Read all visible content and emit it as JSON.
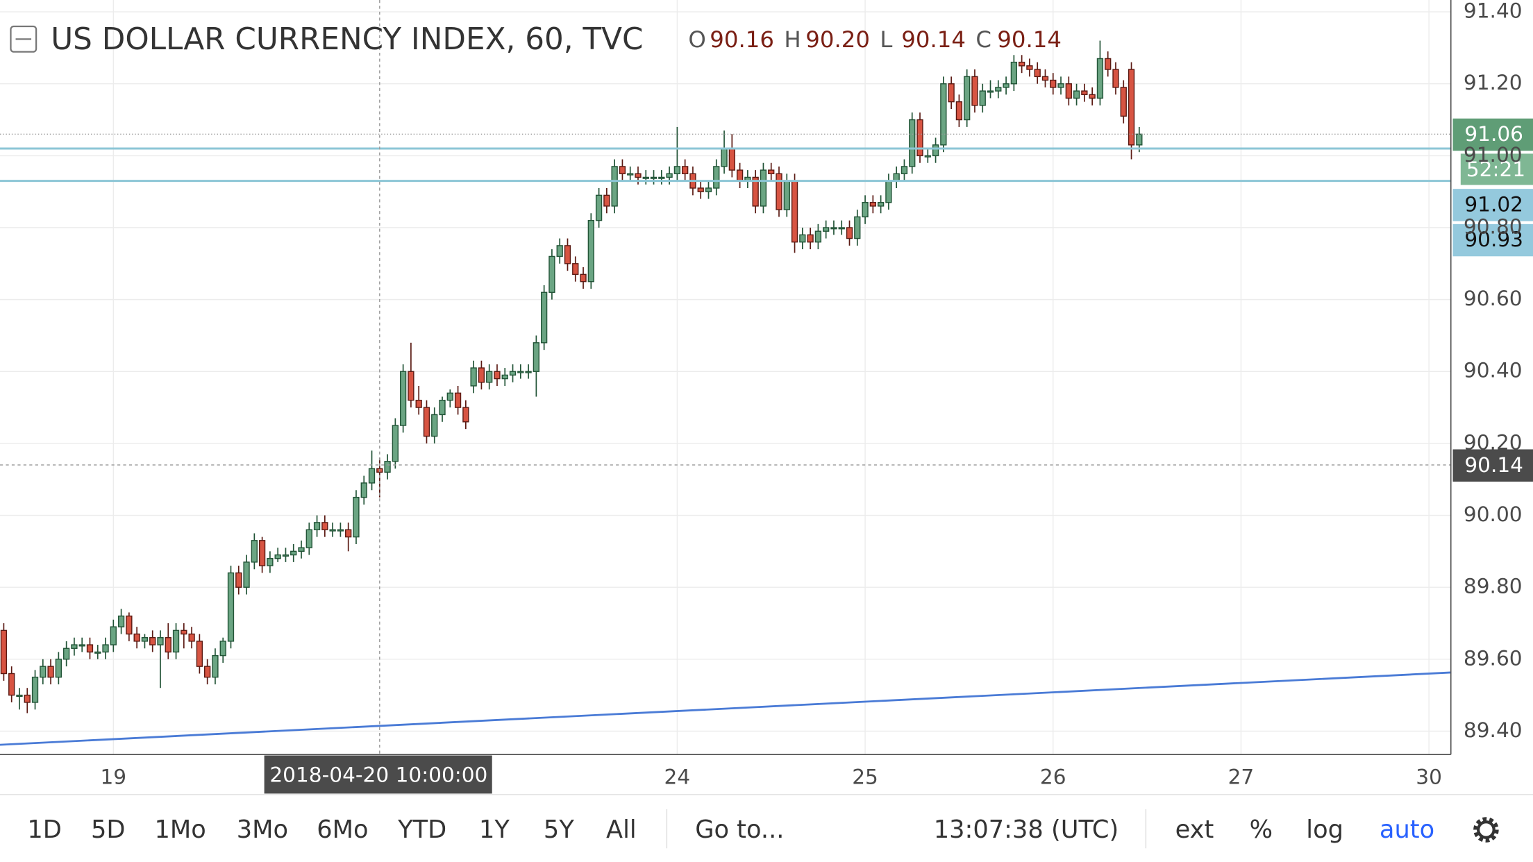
{
  "chart_data": {
    "type": "candlestick",
    "title": "US DOLLAR CURRENCY INDEX, 60, TVC",
    "header": [
      {
        "label": "O",
        "value": 90.16
      },
      {
        "label": "H",
        "value": 90.2,
        "value_label": "90.20"
      },
      {
        "label": "L",
        "value": 90.14
      },
      {
        "label": "C",
        "value": 90.14
      }
    ],
    "up_color": "#6ba583",
    "up_border": "#225437",
    "down_color": "#d75442",
    "down_border": "#5b1a13",
    "x": [
      -14,
      -13,
      -12,
      -11,
      -10,
      -9,
      -8,
      -7,
      -6,
      -5,
      -4,
      -3,
      -2,
      -1,
      0,
      1,
      2,
      3,
      4,
      5,
      6,
      7,
      8,
      9,
      10,
      11,
      12,
      13,
      14,
      15,
      16,
      17,
      18,
      19,
      20,
      21,
      22,
      23,
      24,
      25,
      26,
      27,
      28,
      29,
      30,
      31,
      32,
      33,
      34,
      35,
      36,
      37,
      38,
      39,
      40,
      41,
      42,
      43,
      44,
      45,
      46,
      47,
      48,
      49,
      50,
      51,
      52,
      53,
      54,
      55,
      56,
      57,
      58,
      59,
      60,
      61,
      62,
      63,
      64,
      65,
      66,
      67,
      68,
      69,
      70,
      71,
      72,
      73,
      74,
      75,
      76,
      77,
      78,
      79,
      80,
      81,
      82,
      83,
      84,
      85,
      86,
      87,
      88,
      89,
      90,
      91,
      92,
      93,
      94,
      95,
      96,
      97,
      98,
      99,
      100,
      101,
      102,
      103,
      104,
      105,
      106,
      107,
      108,
      109,
      110,
      111,
      112,
      113,
      114,
      115,
      116,
      117,
      118,
      119,
      120,
      121,
      122,
      123,
      124,
      125,
      126,
      127,
      128,
      129,
      130,
      131
    ],
    "open": [
      89.68,
      89.56,
      89.5,
      89.5,
      89.48,
      89.55,
      89.58,
      89.55,
      89.6,
      89.63,
      89.64,
      89.64,
      89.62,
      89.62,
      89.64,
      89.69,
      89.72,
      89.67,
      89.65,
      89.66,
      89.64,
      89.66,
      89.62,
      89.68,
      89.67,
      89.65,
      89.58,
      89.55,
      89.61,
      89.65,
      89.84,
      89.8,
      89.87,
      89.93,
      89.86,
      89.88,
      89.89,
      89.89,
      89.9,
      89.91,
      89.96,
      89.98,
      89.96,
      89.96,
      89.96,
      89.94,
      90.05,
      90.09,
      90.13,
      90.12,
      90.15,
      90.25,
      90.4,
      90.32,
      90.3,
      90.22,
      90.28,
      90.32,
      90.34,
      90.3,
      90.36,
      90.41,
      90.37,
      90.4,
      90.38,
      90.39,
      90.4,
      90.4,
      90.4,
      90.48,
      90.62,
      90.72,
      90.75,
      90.7,
      90.67,
      90.65,
      90.82,
      90.89,
      90.86,
      90.97,
      90.95,
      90.95,
      90.94,
      90.94,
      90.94,
      90.94,
      90.95,
      90.97,
      90.95,
      90.91,
      90.9,
      90.91,
      90.97,
      91.02,
      90.96,
      90.93,
      90.94,
      90.86,
      90.96,
      90.95,
      90.85,
      90.93,
      90.76,
      90.78,
      90.76,
      90.79,
      90.8,
      90.8,
      90.8,
      90.77,
      90.83,
      90.87,
      90.86,
      90.87,
      90.93,
      90.95,
      90.97,
      91.1,
      91.0,
      91.0,
      91.03,
      91.2,
      91.15,
      91.1,
      91.22,
      91.14,
      91.18,
      91.18,
      91.19,
      91.2,
      91.26,
      91.25,
      91.24,
      91.22,
      91.21,
      91.19,
      91.2,
      91.16,
      91.18,
      91.17,
      91.16,
      91.27,
      91.24,
      91.19,
      91.24,
      91.03
    ],
    "high": [
      89.7,
      89.58,
      89.52,
      89.52,
      89.57,
      89.6,
      89.6,
      89.62,
      89.65,
      89.66,
      89.66,
      89.66,
      89.64,
      89.66,
      89.71,
      89.74,
      89.73,
      89.69,
      89.67,
      89.68,
      89.68,
      89.7,
      89.7,
      89.7,
      89.69,
      89.67,
      89.6,
      89.63,
      89.66,
      89.86,
      89.86,
      89.89,
      89.95,
      89.94,
      89.9,
      89.91,
      89.91,
      89.92,
      89.93,
      89.98,
      90.0,
      90.0,
      89.98,
      89.98,
      89.98,
      90.07,
      90.11,
      90.18,
      90.16,
      90.17,
      90.27,
      90.42,
      90.48,
      90.36,
      90.32,
      90.3,
      90.33,
      90.35,
      90.36,
      90.32,
      90.43,
      90.43,
      90.42,
      90.42,
      90.41,
      90.42,
      90.42,
      90.42,
      90.5,
      90.64,
      90.74,
      90.77,
      90.77,
      90.72,
      90.69,
      90.84,
      90.91,
      90.91,
      90.99,
      90.99,
      90.97,
      90.97,
      90.96,
      90.96,
      90.96,
      90.97,
      91.08,
      90.99,
      90.97,
      90.93,
      90.93,
      90.99,
      91.07,
      91.06,
      90.98,
      90.96,
      90.96,
      90.98,
      90.98,
      90.97,
      90.95,
      90.95,
      90.8,
      90.8,
      90.81,
      90.82,
      90.82,
      90.82,
      90.82,
      90.85,
      90.89,
      90.89,
      90.89,
      90.95,
      90.97,
      90.99,
      91.12,
      91.12,
      91.02,
      91.05,
      91.22,
      91.22,
      91.17,
      91.24,
      91.24,
      91.2,
      91.21,
      91.21,
      91.22,
      91.28,
      91.28,
      91.27,
      91.26,
      91.24,
      91.23,
      91.22,
      91.22,
      91.2,
      91.2,
      91.19,
      91.32,
      91.29,
      91.26,
      91.21,
      91.26,
      91.08
    ],
    "low": [
      89.54,
      89.48,
      89.46,
      89.45,
      89.46,
      89.53,
      89.53,
      89.53,
      89.58,
      89.61,
      89.62,
      89.6,
      89.6,
      89.6,
      89.62,
      89.67,
      89.65,
      89.63,
      89.63,
      89.62,
      89.52,
      89.6,
      89.6,
      89.63,
      89.63,
      89.56,
      89.53,
      89.53,
      89.59,
      89.63,
      89.78,
      89.78,
      89.85,
      89.84,
      89.84,
      89.87,
      89.87,
      89.87,
      89.88,
      89.89,
      89.94,
      89.94,
      89.94,
      89.94,
      89.9,
      89.92,
      90.03,
      90.07,
      90.05,
      90.1,
      90.13,
      90.23,
      90.3,
      90.28,
      90.2,
      90.2,
      90.26,
      90.3,
      90.28,
      90.24,
      90.34,
      90.35,
      90.35,
      90.36,
      90.36,
      90.37,
      90.38,
      90.38,
      90.33,
      90.46,
      90.6,
      90.7,
      90.68,
      90.65,
      90.63,
      90.63,
      90.8,
      90.84,
      90.84,
      90.93,
      90.93,
      90.92,
      90.92,
      90.92,
      90.92,
      90.92,
      90.93,
      90.93,
      90.89,
      90.88,
      90.88,
      90.89,
      90.95,
      90.94,
      90.91,
      90.91,
      90.84,
      90.84,
      90.93,
      90.83,
      90.83,
      90.73,
      90.74,
      90.74,
      90.74,
      90.77,
      90.78,
      90.78,
      90.75,
      90.75,
      90.81,
      90.84,
      90.84,
      90.85,
      90.91,
      90.93,
      90.95,
      90.98,
      90.98,
      90.98,
      91.01,
      91.13,
      91.08,
      91.08,
      91.12,
      91.12,
      91.16,
      91.16,
      91.17,
      91.18,
      91.23,
      91.22,
      91.2,
      91.19,
      91.17,
      91.17,
      91.14,
      91.14,
      91.15,
      91.14,
      91.14,
      91.22,
      91.17,
      91.09,
      90.99,
      91.01
    ],
    "close": [
      89.56,
      89.5,
      89.5,
      89.48,
      89.55,
      89.58,
      89.55,
      89.6,
      89.63,
      89.64,
      89.64,
      89.62,
      89.62,
      89.64,
      89.69,
      89.72,
      89.67,
      89.65,
      89.66,
      89.64,
      89.66,
      89.62,
      89.68,
      89.67,
      89.65,
      89.58,
      89.55,
      89.61,
      89.65,
      89.84,
      89.8,
      89.87,
      89.93,
      89.86,
      89.88,
      89.89,
      89.89,
      89.9,
      89.91,
      89.96,
      89.98,
      89.96,
      89.96,
      89.96,
      89.94,
      90.05,
      90.09,
      90.13,
      90.12,
      90.15,
      90.25,
      90.4,
      90.32,
      90.3,
      90.22,
      90.28,
      90.32,
      90.34,
      90.3,
      90.26,
      90.41,
      90.37,
      90.4,
      90.38,
      90.39,
      90.4,
      90.4,
      90.4,
      90.48,
      90.62,
      90.72,
      90.75,
      90.7,
      90.67,
      90.65,
      90.82,
      90.89,
      90.86,
      90.97,
      90.95,
      90.95,
      90.94,
      90.94,
      90.94,
      90.94,
      90.95,
      90.97,
      90.95,
      90.91,
      90.9,
      90.91,
      90.97,
      91.02,
      90.96,
      90.93,
      90.94,
      90.86,
      90.96,
      90.95,
      90.85,
      90.93,
      90.76,
      90.78,
      90.76,
      90.79,
      90.8,
      90.8,
      90.8,
      90.77,
      90.83,
      90.87,
      90.86,
      90.87,
      90.93,
      90.95,
      90.97,
      91.1,
      91.0,
      91.0,
      91.03,
      91.2,
      91.15,
      91.1,
      91.22,
      91.14,
      91.18,
      91.18,
      91.19,
      91.2,
      91.26,
      91.25,
      91.24,
      91.22,
      91.21,
      91.19,
      91.2,
      91.16,
      91.18,
      91.17,
      91.16,
      91.27,
      91.24,
      91.19,
      91.11,
      91.03,
      91.06
    ],
    "xlim": [
      -14.48,
      170.8
    ],
    "ylim": [
      89.335,
      91.433
    ],
    "grid": true,
    "xticks": [
      {
        "value": 0,
        "label": "19"
      },
      {
        "value": 72,
        "label": "24"
      },
      {
        "value": 96,
        "label": "25"
      },
      {
        "value": 120,
        "label": "26"
      },
      {
        "value": 144,
        "label": "27"
      },
      {
        "value": 168,
        "label": "30"
      }
    ],
    "yticks": [
      {
        "value": 89.4,
        "label": "89.40"
      },
      {
        "value": 89.6,
        "label": "89.60"
      },
      {
        "value": 89.8,
        "label": "89.80"
      },
      {
        "value": 90,
        "label": "90.00"
      },
      {
        "value": 90.2,
        "label": "90.20"
      },
      {
        "value": 90.4,
        "label": "90.40"
      },
      {
        "value": 90.6,
        "label": "90.60"
      },
      {
        "value": 90.8,
        "label": "90.80"
      },
      {
        "value": 91,
        "label": "91.00"
      },
      {
        "value": 91.2,
        "label": "91.20"
      },
      {
        "value": 91.4,
        "label": "91.40"
      }
    ],
    "trend_line": {
      "x": [
        -14.48,
        170.8
      ],
      "y": [
        89.362,
        89.563
      ],
      "color": "#4a7bd6"
    },
    "price_labels": [
      {
        "value": 91.06,
        "color": "#5f9d76",
        "text_color": "#ffffff",
        "countdown": "52:21",
        "line": "dotted"
      },
      {
        "value": 91.02,
        "color": "#94c9dd",
        "text_color": "#111111",
        "line": "solid"
      },
      {
        "value": 90.93,
        "color": "#94c9dd",
        "text_color": "#111111",
        "line": "solid"
      }
    ],
    "crosshair": {
      "x": 34,
      "y": 90.14,
      "x_label": "2018-04-20 10:00:00"
    }
  },
  "toolbar": {
    "ranges": [
      "1D",
      "5D",
      "1Mo",
      "3Mo",
      "6Mo",
      "YTD",
      "1Y",
      "5Y",
      "All"
    ],
    "goto": "Go to...",
    "time": "13:07:38 (UTC)",
    "options": [
      "ext",
      "%",
      "log",
      "auto"
    ]
  }
}
